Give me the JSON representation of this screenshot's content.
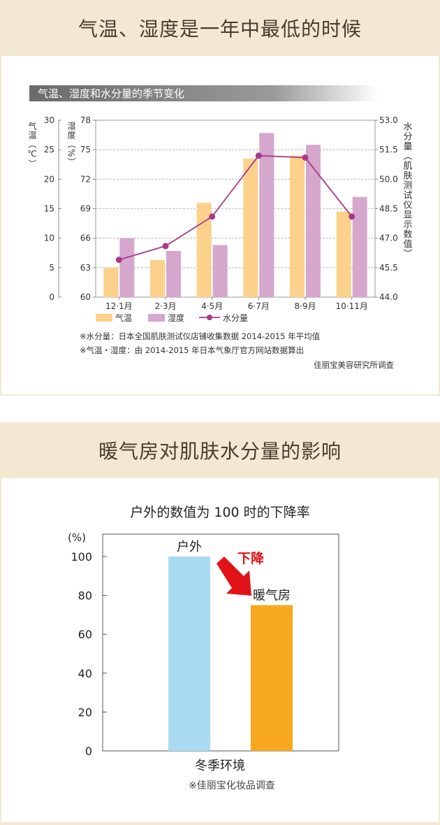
{
  "section1": {
    "header": "气温、湿度是一年中最低的时候",
    "chart_banner": "气温、湿度和水分量的季节变化"
  },
  "section2": {
    "header": "暖气房对肌肤水分量的影响"
  },
  "colors": {
    "temp": "#fcd18b",
    "humidity": "#d5a7cd",
    "moisture": "#a8398a",
    "outdoor": "#a9dbf2",
    "heated": "#f7a81f",
    "arrow": "#e21318"
  },
  "chart_data": [
    {
      "type": "bar+line",
      "title": "气温、湿度和水分量的季节变化",
      "categories": [
        "12·1月",
        "2·3月",
        "4·5月",
        "6·7月",
        "8·9月",
        "10·11月"
      ],
      "series": [
        {
          "name": "气温",
          "type": "bar",
          "axis": "left1",
          "values": [
            5,
            6.3,
            16,
            23.5,
            24,
            14.5
          ]
        },
        {
          "name": "湿度",
          "type": "bar",
          "axis": "left2",
          "values": [
            66,
            64.7,
            65.3,
            76.7,
            75.5,
            70.2
          ]
        },
        {
          "name": "水分量",
          "type": "line",
          "axis": "right",
          "values": [
            45.9,
            46.6,
            48.1,
            51.2,
            51.1,
            48.1
          ]
        }
      ],
      "axes": {
        "left1": {
          "label": "气温（℃）",
          "min": 0,
          "max": 30,
          "ticks": [
            "0",
            "5",
            "10",
            "15",
            "20",
            "25",
            "30"
          ]
        },
        "left2": {
          "label": "湿度（%）",
          "min": 60,
          "max": 78,
          "ticks": [
            "60",
            "63",
            "66",
            "69",
            "72",
            "75",
            "78"
          ]
        },
        "right": {
          "label": "水分量（肌肤测试仪显示数值）",
          "min": 44.0,
          "max": 53.0,
          "ticks": [
            "44.0",
            "45.5",
            "47.0",
            "48.5",
            "50.0",
            "51.5",
            "53.0"
          ]
        }
      },
      "grid": true,
      "legend": [
        "气温",
        "湿度",
        "水分量"
      ],
      "notes": [
        "※水分量：日本全国肌肤测试仪店铺收集数据 2014-2015 年平均值",
        "※气温・湿度：由 2014-2015 年日本气象厅官方网站数据算出"
      ],
      "source": "佳丽宝美容研究所调查"
    },
    {
      "type": "bar",
      "title": "户外的数值为 100 时的下降率",
      "ylabel": "(%)",
      "xlabel": "冬季环境",
      "ylim": [
        0,
        100
      ],
      "yticks": [
        "0",
        "20",
        "40",
        "60",
        "80",
        "100"
      ],
      "categories": [
        "户外",
        "暖气房"
      ],
      "values": [
        100,
        75
      ],
      "annotation": "下降",
      "source": "※佳丽宝化妆品调查"
    }
  ]
}
